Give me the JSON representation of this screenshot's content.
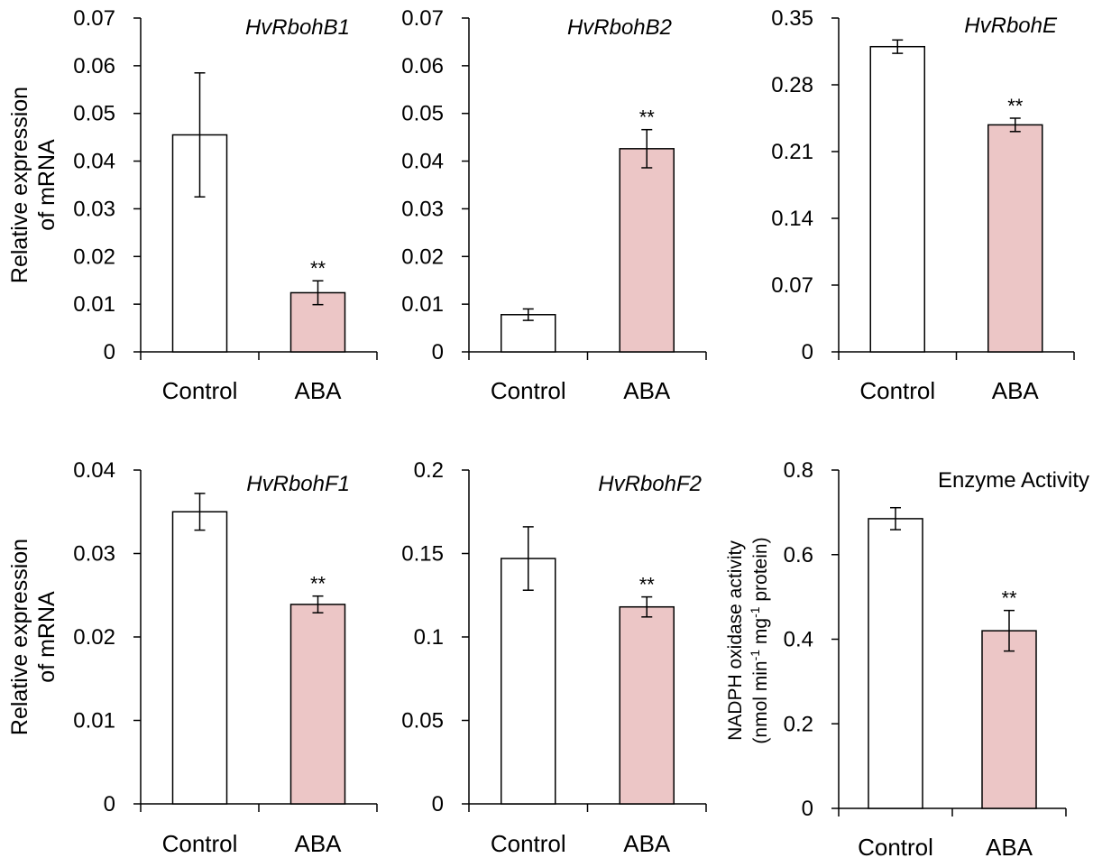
{
  "colors": {
    "control": "#ffffff",
    "aba": "#ecc6c6",
    "axis": "#000000"
  },
  "chart_data": [
    {
      "type": "bar",
      "title": "HvRbohB1",
      "title_italic": true,
      "ylabel": [
        "Relative expression",
        "of mRNA"
      ],
      "ylim": [
        0,
        0.07
      ],
      "yticks": [
        "0",
        "0.01",
        "0.02",
        "0.03",
        "0.04",
        "0.05",
        "0.06",
        "0.07"
      ],
      "categories": [
        "Control",
        "ABA"
      ],
      "values": [
        0.0455,
        0.0124
      ],
      "errors": [
        0.013,
        0.0025
      ],
      "significance": [
        "",
        "**"
      ]
    },
    {
      "type": "bar",
      "title": "HvRbohB2",
      "title_italic": true,
      "ylabel": [],
      "ylim": [
        0,
        0.07
      ],
      "yticks": [
        "0",
        "0.01",
        "0.02",
        "0.03",
        "0.04",
        "0.05",
        "0.06",
        "0.07"
      ],
      "categories": [
        "Control",
        "ABA"
      ],
      "values": [
        0.0078,
        0.0426
      ],
      "errors": [
        0.0012,
        0.004
      ],
      "significance": [
        "",
        "**"
      ]
    },
    {
      "type": "bar",
      "title": "HvRbohE",
      "title_italic": true,
      "ylabel": [],
      "ylim": [
        0,
        0.35
      ],
      "yticks": [
        "0",
        "0.07",
        "0.14",
        "0.21",
        "0.28",
        "0.35"
      ],
      "categories": [
        "Control",
        "ABA"
      ],
      "values": [
        0.32,
        0.238
      ],
      "errors": [
        0.007,
        0.007
      ],
      "significance": [
        "",
        "**"
      ]
    },
    {
      "type": "bar",
      "title": "HvRbohF1",
      "title_italic": true,
      "ylabel": [
        "Relative expression",
        "of mRNA"
      ],
      "ylim": [
        0,
        0.04
      ],
      "yticks": [
        "0",
        "0.01",
        "0.02",
        "0.03",
        "0.04"
      ],
      "categories": [
        "Control",
        "ABA"
      ],
      "values": [
        0.035,
        0.0239
      ],
      "errors": [
        0.0022,
        0.001
      ],
      "significance": [
        "",
        "**"
      ]
    },
    {
      "type": "bar",
      "title": "HvRbohF2",
      "title_italic": true,
      "ylabel": [],
      "ylim": [
        0,
        0.2
      ],
      "yticks": [
        "0",
        "0.05",
        "0.1",
        "0.15",
        "0.2"
      ],
      "categories": [
        "Control",
        "ABA"
      ],
      "values": [
        0.147,
        0.118
      ],
      "errors": [
        0.019,
        0.006
      ],
      "significance": [
        "",
        "**"
      ]
    },
    {
      "type": "bar",
      "title": "Enzyme Activity",
      "title_italic": false,
      "ylabel": [
        "NADPH oxidase activity",
        "(nmol min-1 mg-1 protein)"
      ],
      "ylim": [
        0,
        0.8
      ],
      "yticks": [
        "0",
        "0.2",
        "0.4",
        "0.6",
        "0.8"
      ],
      "categories": [
        "Control",
        "ABA"
      ],
      "values": [
        0.685,
        0.42
      ],
      "errors": [
        0.026,
        0.048
      ],
      "significance": [
        "",
        "**"
      ]
    }
  ]
}
